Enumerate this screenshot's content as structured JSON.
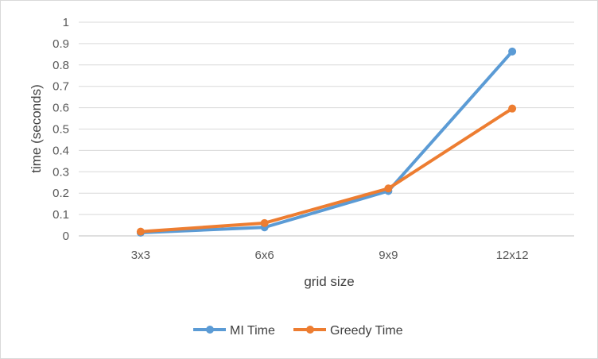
{
  "chart_data": {
    "type": "line",
    "title": "",
    "xlabel": "grid size",
    "ylabel": "time (seconds)",
    "categories": [
      "3x3",
      "6x6",
      "9x9",
      "12x12"
    ],
    "ylim": [
      0,
      1
    ],
    "yticks": [
      0,
      0.1,
      0.2,
      0.3,
      0.4,
      0.5,
      0.6,
      0.7,
      0.8,
      0.9,
      1
    ],
    "ytick_labels": [
      "0",
      "0.1",
      "0.2",
      "0.3",
      "0.4",
      "0.5",
      "0.6",
      "0.7",
      "0.8",
      "0.9",
      "1"
    ],
    "grid": true,
    "legend": "bottom",
    "series": [
      {
        "name": "MI Time",
        "color": "#5b9bd5",
        "values": [
          0.015,
          0.04,
          0.21,
          0.863
        ]
      },
      {
        "name": "Greedy Time",
        "color": "#ed7d31",
        "values": [
          0.02,
          0.06,
          0.222,
          0.596
        ]
      }
    ]
  }
}
